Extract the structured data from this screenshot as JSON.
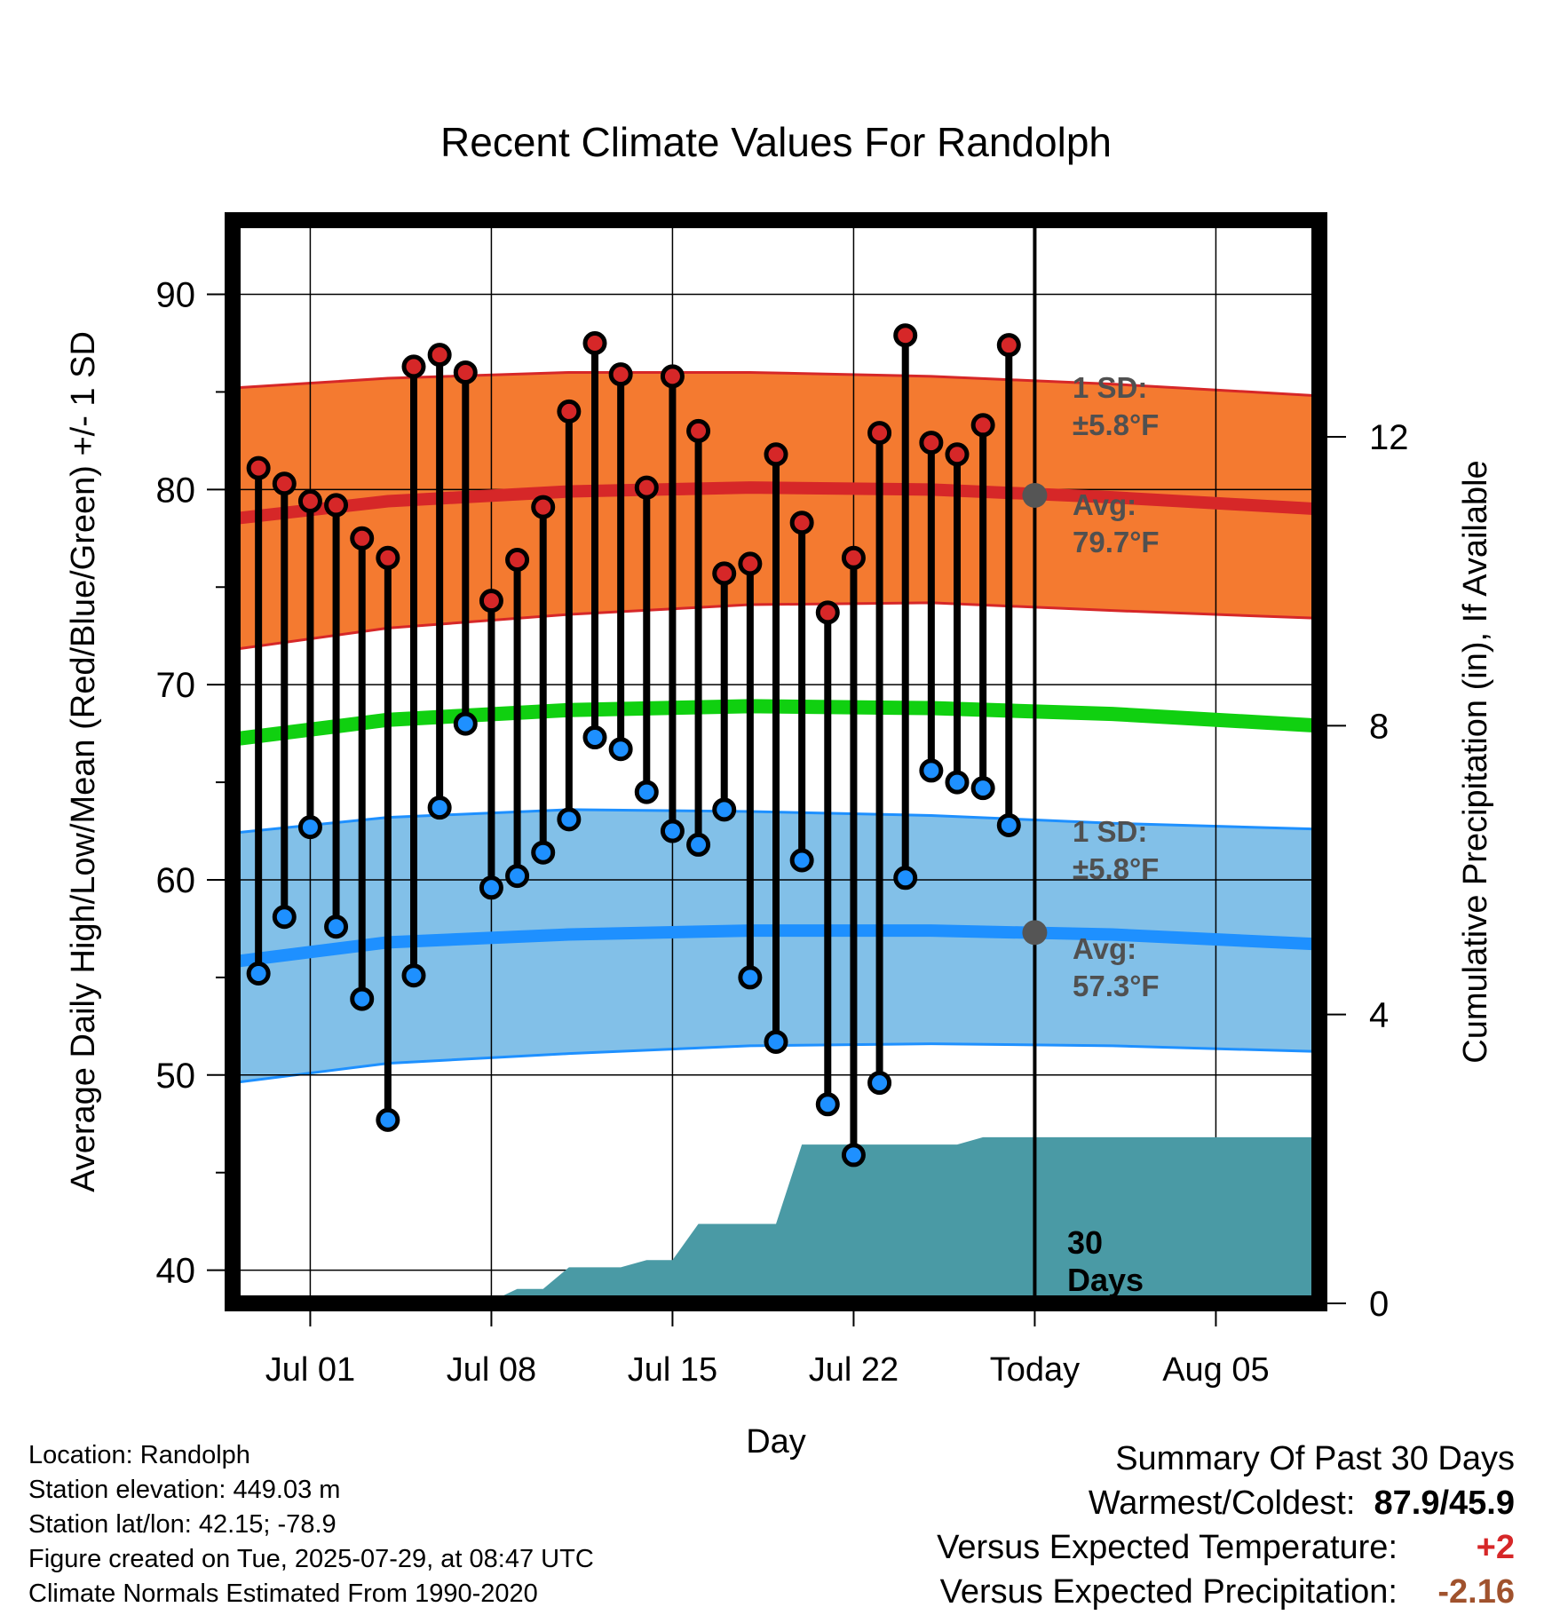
{
  "chart_data": {
    "type": "line",
    "title": "Recent Climate Values For Randolph",
    "xlabel": "Day",
    "ylabel": "Average Daily High/Low/Mean (Red/Blue/Green) +/- 1 SD",
    "y2label": "Cumulative Precipitation (in), If Available",
    "ylim": [
      38.3,
      93.8
    ],
    "y2lim": [
      0,
      15
    ],
    "y_ticks": [
      40,
      50,
      60,
      70,
      80,
      90
    ],
    "y2_ticks": [
      0,
      4,
      8,
      12
    ],
    "x_start": "2025-06-28",
    "x_end": "2025-08-09",
    "x_ticks": [
      {
        "date": "2025-07-01",
        "label": "Jul 01"
      },
      {
        "date": "2025-07-08",
        "label": "Jul 08"
      },
      {
        "date": "2025-07-15",
        "label": "Jul 15"
      },
      {
        "date": "2025-07-22",
        "label": "Jul 22"
      },
      {
        "date": "2025-07-29",
        "label": "Today"
      },
      {
        "date": "2025-08-05",
        "label": "Aug 05"
      }
    ],
    "grid": true,
    "today": "2025-07-29",
    "dates": [
      "2025-06-29",
      "2025-06-30",
      "2025-07-01",
      "2025-07-02",
      "2025-07-03",
      "2025-07-04",
      "2025-07-05",
      "2025-07-06",
      "2025-07-07",
      "2025-07-08",
      "2025-07-09",
      "2025-07-10",
      "2025-07-11",
      "2025-07-12",
      "2025-07-13",
      "2025-07-14",
      "2025-07-15",
      "2025-07-16",
      "2025-07-17",
      "2025-07-18",
      "2025-07-19",
      "2025-07-20",
      "2025-07-21",
      "2025-07-22",
      "2025-07-23",
      "2025-07-24",
      "2025-07-25",
      "2025-07-26",
      "2025-07-27",
      "2025-07-28"
    ],
    "series": [
      {
        "name": "High",
        "color": "#d62728",
        "values": [
          81.1,
          80.3,
          79.4,
          79.2,
          77.5,
          76.5,
          86.3,
          86.9,
          86.0,
          74.3,
          76.4,
          79.1,
          84.0,
          87.5,
          85.9,
          80.1,
          85.8,
          83.0,
          75.7,
          76.2,
          81.8,
          78.3,
          73.7,
          76.5,
          82.9,
          87.9,
          82.4,
          81.8,
          83.3,
          87.4
        ]
      },
      {
        "name": "Low",
        "color": "#1e90ff",
        "values": [
          55.2,
          58.1,
          62.7,
          57.6,
          53.9,
          47.7,
          55.1,
          63.7,
          68.0,
          59.6,
          60.2,
          61.4,
          63.1,
          67.3,
          66.7,
          64.5,
          62.5,
          61.8,
          63.6,
          55.0,
          51.7,
          61.0,
          48.5,
          45.9,
          49.6,
          60.1,
          65.6,
          65.0,
          64.7,
          62.8
        ]
      }
    ],
    "normals": {
      "dates": [
        "2025-06-28",
        "2025-07-04",
        "2025-07-11",
        "2025-07-18",
        "2025-07-25",
        "2025-08-01",
        "2025-08-09"
      ],
      "high_avg": [
        78.5,
        79.4,
        79.9,
        80.1,
        80.0,
        79.6,
        79.0
      ],
      "low_avg": [
        55.8,
        56.8,
        57.2,
        57.4,
        57.4,
        57.2,
        56.7
      ],
      "mean_avg": [
        67.2,
        68.2,
        68.7,
        68.9,
        68.8,
        68.5,
        67.9
      ],
      "high_sd_band": [
        [
          71.8,
          85.2
        ],
        [
          72.9,
          85.7
        ],
        [
          73.6,
          86.0
        ],
        [
          74.1,
          86.0
        ],
        [
          74.2,
          85.8
        ],
        [
          73.8,
          85.4
        ],
        [
          73.4,
          84.8
        ]
      ],
      "low_sd_band": [
        [
          49.6,
          62.4
        ],
        [
          50.6,
          63.2
        ],
        [
          51.1,
          63.6
        ],
        [
          51.5,
          63.5
        ],
        [
          51.6,
          63.3
        ],
        [
          51.5,
          62.9
        ],
        [
          51.2,
          62.6
        ]
      ]
    },
    "precip": {
      "name": "Cumulative Precipitation",
      "color": "#4a9aa5",
      "values": [
        0,
        0,
        0,
        0,
        0,
        0,
        0,
        0,
        0,
        0.03,
        0.2,
        0.2,
        0.5,
        0.5,
        0.5,
        0.6,
        0.6,
        1.1,
        1.1,
        1.1,
        1.1,
        2.2,
        2.2,
        2.2,
        2.2,
        2.2,
        2.2,
        2.2,
        2.3,
        2.3
      ],
      "extend_to": "2025-08-09",
      "extend_value": 2.3
    },
    "annotations": {
      "high_sd_label": "1 SD:",
      "high_sd_value": "±5.8°F",
      "high_avg_label": "Avg:",
      "high_avg_value": "79.7°F",
      "low_sd_label": "1 SD:",
      "low_sd_value": "±5.8°F",
      "low_avg_label": "Avg:",
      "low_avg_value": "57.3°F",
      "today_high_avg": 79.7,
      "today_low_avg": 57.3,
      "days_number": "30",
      "days_word": "Days"
    },
    "colors": {
      "high_band": "#f47a30",
      "high_line": "#d62728",
      "low_band": "#82c0e8",
      "low_line": "#1e90ff",
      "mean_line": "#10d010",
      "precip_fill": "#4a9aa5",
      "today_marker": "#555555"
    }
  },
  "info": {
    "location": "Location: Randolph",
    "elevation": "Station elevation: 449.03 m",
    "latlon": "Station lat/lon: 42.15; -78.9",
    "created": "Figure created on Tue, 2025-07-29, at 08:47 UTC",
    "normals": "Climate Normals Estimated From 1990-2020"
  },
  "summary": {
    "heading": "Summary Of Past 30 Days",
    "warm_cold_label": "Warmest/Coldest:",
    "warm_cold_value": "87.9/45.9",
    "temp_label": "Versus Expected Temperature:",
    "temp_value": "+2",
    "temp_color": "#d62728",
    "precip_label": "Versus Expected Precipitation:",
    "precip_value": "-2.16",
    "precip_color": "#a0522d"
  }
}
